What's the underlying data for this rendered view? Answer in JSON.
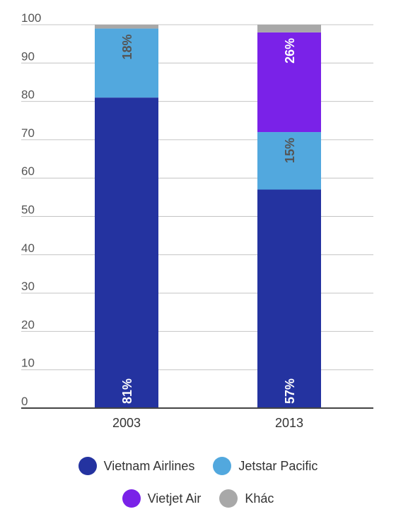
{
  "chart_data": {
    "type": "bar",
    "stacked": true,
    "categories": [
      "2003",
      "2013"
    ],
    "series": [
      {
        "name": "Vietnam Airlines",
        "color": "#2433a0",
        "values": [
          81,
          57
        ],
        "labels": [
          "81%",
          "57%"
        ]
      },
      {
        "name": "Jetstar Pacific",
        "color": "#52a8de",
        "values": [
          18,
          15
        ],
        "labels": [
          "18%",
          "15%"
        ]
      },
      {
        "name": "Vietjet Air",
        "color": "#7a22e8",
        "values": [
          0,
          26
        ],
        "labels": [
          "",
          "26%"
        ]
      },
      {
        "name": "Khác",
        "color": "#a8a8a8",
        "values": [
          1,
          2
        ],
        "labels": [
          "",
          ""
        ]
      }
    ],
    "ylim": [
      0,
      100
    ],
    "yticks": [
      0,
      10,
      20,
      30,
      40,
      50,
      60,
      70,
      80,
      90,
      100
    ],
    "grid": true,
    "legend_position": "bottom"
  }
}
